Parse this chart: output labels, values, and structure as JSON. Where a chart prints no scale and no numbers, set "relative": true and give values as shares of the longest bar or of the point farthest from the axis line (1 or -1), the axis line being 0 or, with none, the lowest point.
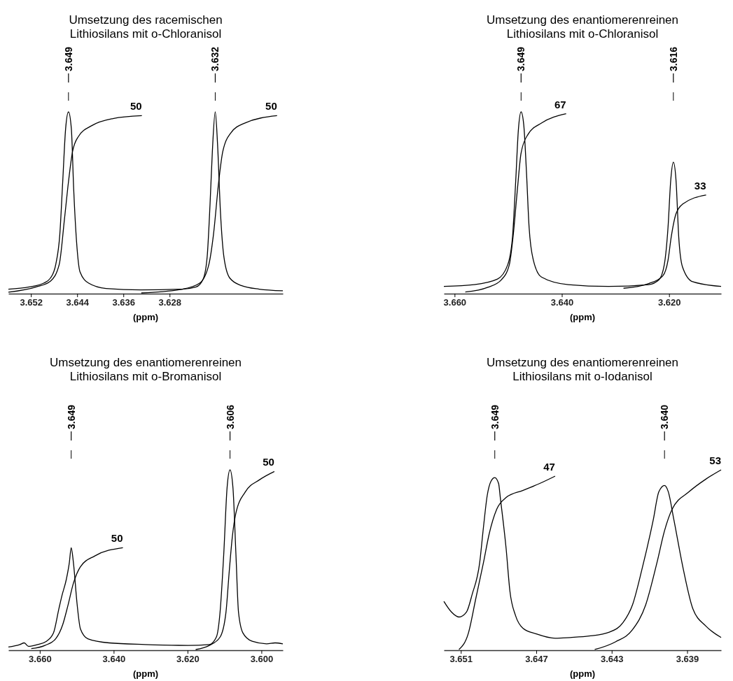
{
  "chart_data": [
    {
      "type": "line",
      "title": "Umsetzung des racemischen Lithiosilans mit o-Chloranisol",
      "xlabel": "(ppm)",
      "relative": true,
      "xlim": [
        3.6559,
        3.6084
      ],
      "xticks": [
        3.652,
        3.644,
        3.636,
        3.628
      ],
      "series": [
        {
          "color": "#000000",
          "x": [
            3.6559,
            3.6523,
            3.6498,
            3.6486,
            3.6477,
            3.647,
            3.6465,
            3.646,
            3.6455,
            3.645,
            3.6446,
            3.6441,
            3.6435,
            3.642,
            3.639,
            3.633,
            3.6258,
            3.6234,
            3.6222,
            3.6215,
            3.621,
            3.6206,
            3.6201,
            3.6197,
            3.6192,
            3.6186,
            3.6176,
            3.6156,
            3.6125,
            3.6084
          ],
          "values": [
            0.021,
            0.033,
            0.054,
            0.083,
            0.158,
            0.324,
            0.614,
            0.905,
            1,
            0.905,
            0.573,
            0.282,
            0.116,
            0.054,
            0.025,
            0.017,
            0.021,
            0.033,
            0.076,
            0.199,
            0.49,
            0.78,
            1,
            0.822,
            0.448,
            0.199,
            0.083,
            0.041,
            0.021,
            0.012
          ]
        },
        {
          "color": "#000000",
          "x": [
            3.6559,
            3.6511,
            3.6486,
            3.6471,
            3.6462,
            3.6455,
            3.6448,
            3.6438,
            3.6414,
            3.6378,
            3.6328
          ],
          "values": [
            0.004,
            0.033,
            0.066,
            0.158,
            0.407,
            0.614,
            0.78,
            0.863,
            0.925,
            0.963,
            0.979
          ]
        },
        {
          "color": "#000000",
          "x": [
            3.6329,
            3.6258,
            3.6228,
            3.6212,
            3.6204,
            3.6195,
            3.6188,
            3.6174,
            3.615,
            3.6094
          ],
          "values": [
            0,
            0.021,
            0.054,
            0.158,
            0.324,
            0.614,
            0.78,
            0.884,
            0.938,
            0.979
          ]
        }
      ],
      "annotations": [
        {
          "text": "3.649",
          "x": 3.6455
        },
        {
          "text": "3.632",
          "x": 3.6201
        },
        {
          "text": "50",
          "x": 3.6328,
          "y": 0.979
        },
        {
          "text": "50",
          "x": 3.6094,
          "y": 0.979
        }
      ]
    },
    {
      "type": "line",
      "title": "Umsetzung des enantiomerenreinen Lithiosilans mit o-Chloranisol",
      "xlabel": "(ppm)",
      "relative": true,
      "xlim": [
        3.662,
        3.6103
      ],
      "xticks": [
        {
          "value": 3.66,
          "label": "3.660"
        },
        {
          "value": 3.64,
          "label": "3.640"
        },
        {
          "value": 3.62,
          "label": "3.620"
        }
      ],
      "series": [
        {
          "color": "#000000",
          "x": [
            3.662,
            3.6564,
            3.652,
            3.6501,
            3.6492,
            3.6486,
            3.6481,
            3.6476,
            3.6471,
            3.6466,
            3.6461,
            3.6453,
            3.6438,
            3.6388,
            3.6313,
            3.6238,
            3.6219,
            3.6209,
            3.6202,
            3.6197,
            3.6192,
            3.6187,
            3.6182,
            3.6175,
            3.6156,
            3.6103
          ],
          "values": [
            0.036,
            0.046,
            0.077,
            0.155,
            0.309,
            0.619,
            0.902,
            1,
            0.928,
            0.67,
            0.361,
            0.18,
            0.088,
            0.046,
            0.036,
            0.046,
            0.072,
            0.155,
            0.361,
            0.619,
            0.722,
            0.619,
            0.309,
            0.144,
            0.062,
            0.036
          ]
        },
        {
          "color": "#000000",
          "x": [
            3.658,
            3.6538,
            3.6513,
            3.6498,
            3.6491,
            3.6483,
            3.6476,
            3.6463,
            3.6438,
            3.6392
          ],
          "values": [
            0.005,
            0.031,
            0.072,
            0.155,
            0.309,
            0.567,
            0.773,
            0.876,
            0.938,
            0.99
          ]
        },
        {
          "color": "#000000",
          "x": [
            3.6285,
            3.6238,
            3.6212,
            3.6202,
            3.6196,
            3.6187,
            3.6175,
            3.6131
          ],
          "values": [
            0.026,
            0.052,
            0.093,
            0.18,
            0.309,
            0.438,
            0.49,
            0.541
          ]
        }
      ],
      "annotations": [
        {
          "text": "3.649",
          "x": 3.6476
        },
        {
          "text": "3.616",
          "x": 3.6192
        },
        {
          "text": "67",
          "x": 3.6392,
          "y": 0.99
        },
        {
          "text": "33",
          "x": 3.6131,
          "y": 0.541
        }
      ]
    },
    {
      "type": "line",
      "title": "Umsetzung des enantiomerenreinen Lithiosilans mit o-Bromanisol",
      "xlabel": "(ppm)",
      "relative": true,
      "xlim": [
        3.6685,
        3.5942
      ],
      "xticks": [
        {
          "value": 3.66,
          "label": "3.660"
        },
        {
          "value": 3.64,
          "label": "3.640"
        },
        {
          "value": 3.62,
          "label": "3.620"
        },
        {
          "value": 3.6,
          "label": "3.600"
        }
      ],
      "series": [
        {
          "color": "#000000",
          "x": [
            3.6685,
            3.6654,
            3.6642,
            3.6631,
            3.6606,
            3.6582,
            3.6563,
            3.6548,
            3.654,
            3.6528,
            3.652,
            3.6515,
            3.6509,
            3.6499,
            3.649,
            3.647,
            3.6412,
            3.6315,
            3.6199,
            3.6141,
            3.6122,
            3.6112,
            3.6102,
            3.6093,
            3.6085,
            3.6077,
            3.6069,
            3.6062,
            3.605,
            3.6025,
            3.5986,
            3.5963,
            3.5942
          ],
          "values": [
            0.014,
            0.028,
            0.037,
            0.018,
            0.028,
            0.046,
            0.092,
            0.23,
            0.3,
            0.392,
            0.484,
            0.567,
            0.484,
            0.253,
            0.115,
            0.06,
            0.037,
            0.028,
            0.023,
            0.028,
            0.069,
            0.207,
            0.53,
            0.899,
            1,
            0.899,
            0.53,
            0.207,
            0.092,
            0.046,
            0.032,
            0.037,
            0.032
          ]
        },
        {
          "color": "#000000",
          "x": [
            3.6623,
            3.6586,
            3.6557,
            3.6538,
            3.6524,
            3.6509,
            3.649,
            3.6451,
            3.6375
          ],
          "values": [
            0.005,
            0.023,
            0.06,
            0.138,
            0.244,
            0.369,
            0.461,
            0.521,
            0.567
          ]
        },
        {
          "color": "#000000",
          "x": [
            3.6178,
            3.6141,
            3.6112,
            3.6096,
            3.6087,
            3.6079,
            3.6069,
            3.6044,
            3.6005,
            3.5965
          ],
          "values": [
            0,
            0.023,
            0.069,
            0.207,
            0.438,
            0.622,
            0.76,
            0.876,
            0.945,
            0.991
          ]
        }
      ],
      "annotations": [
        {
          "text": "3.649",
          "x": 3.6515
        },
        {
          "text": "3.606",
          "x": 3.6085
        },
        {
          "text": "50",
          "x": 3.6375,
          "y": 0.567
        },
        {
          "text": "50",
          "x": 3.5965,
          "y": 0.991
        }
      ]
    },
    {
      "type": "line",
      "title": "Umsetzung des enantiomerenreinen Lithiosilans mit o-Iodanisol",
      "xlabel": "(ppm)",
      "relative": true,
      "xlim": [
        3.6519,
        3.6372
      ],
      "xticks": [
        3.651,
        3.647,
        3.643,
        3.639
      ],
      "series": [
        {
          "color": "#000000",
          "x": [
            3.6519,
            3.6515,
            3.6511,
            3.6507,
            3.6504,
            3.65,
            3.6498,
            3.6496,
            3.6494,
            3.6492,
            3.649,
            3.6489,
            3.6486,
            3.6484,
            3.6481,
            3.6477,
            3.647,
            3.646,
            3.6452,
            3.6442,
            3.6431,
            3.6424,
            3.6419,
            3.6414,
            3.6408,
            3.6405,
            3.6402,
            3.64,
            3.6397,
            3.6392,
            3.6387,
            3.638,
            3.6372
          ],
          "values": [
            0.268,
            0.209,
            0.181,
            0.209,
            0.307,
            0.484,
            0.681,
            0.858,
            0.937,
            0.957,
            0.925,
            0.839,
            0.563,
            0.327,
            0.189,
            0.118,
            0.087,
            0.063,
            0.067,
            0.075,
            0.098,
            0.15,
            0.248,
            0.445,
            0.72,
            0.878,
            0.913,
            0.878,
            0.72,
            0.445,
            0.228,
            0.13,
            0.067
          ]
        },
        {
          "color": "#000000",
          "x": [
            3.6511,
            3.6506,
            3.6502,
            3.6498,
            3.6495,
            3.6491,
            3.6486,
            3.6477,
            3.6468,
            3.646
          ],
          "values": [
            0,
            0.091,
            0.287,
            0.484,
            0.642,
            0.78,
            0.846,
            0.886,
            0.925,
            0.965
          ]
        },
        {
          "color": "#000000",
          "x": [
            3.6439,
            3.6428,
            3.6419,
            3.6412,
            3.6406,
            3.6402,
            3.6398,
            3.6389,
            3.638,
            3.6372
          ],
          "values": [
            0,
            0.043,
            0.11,
            0.248,
            0.484,
            0.661,
            0.78,
            0.878,
            0.949,
            1
          ]
        }
      ],
      "annotations": [
        {
          "text": "3.649",
          "x": 3.6492
        },
        {
          "text": "3.640",
          "x": 3.6402
        },
        {
          "text": "47",
          "x": 3.646,
          "y": 0.965
        },
        {
          "text": "53",
          "x": 3.6372,
          "y": 1
        }
      ]
    }
  ]
}
